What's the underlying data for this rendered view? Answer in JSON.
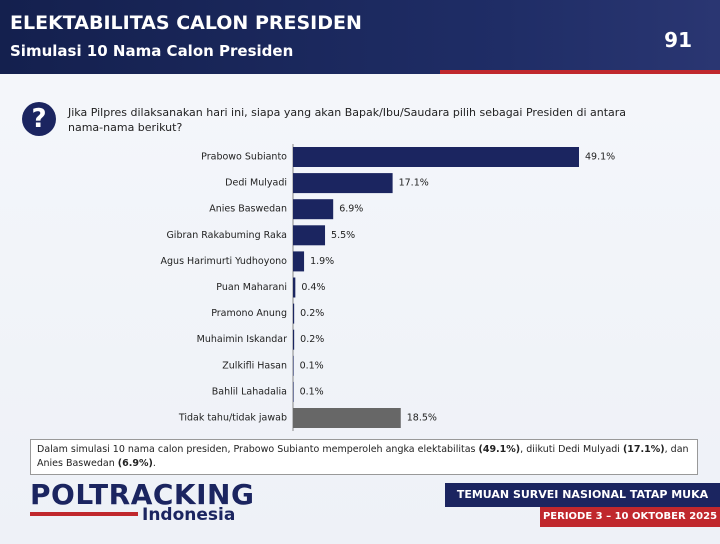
{
  "header": {
    "title": "ELEKTABILITAS CALON PRESIDEN",
    "subtitle": "Simulasi 10 Nama Calon Presiden",
    "page_number": "91"
  },
  "question": "Jika Pilpres dilaksanakan hari ini, siapa yang akan Bapak/Ibu/Saudara pilih sebagai Presiden di antara nama-nama berikut?",
  "chart_data": {
    "type": "bar",
    "orientation": "horizontal",
    "categories": [
      "Prabowo Subianto",
      "Dedi Mulyadi",
      "Anies Baswedan",
      "Gibran Rakabuming Raka",
      "Agus Harimurti Yudhoyono",
      "Puan Maharani",
      "Pramono Anung",
      "Muhaimin Iskandar",
      "Zulkifli Hasan",
      "Bahlil Lahadalia",
      "Tidak tahu/tidak jawab"
    ],
    "values": [
      49.1,
      17.1,
      6.9,
      5.5,
      1.9,
      0.4,
      0.2,
      0.2,
      0.1,
      0.1,
      18.5
    ],
    "value_labels": [
      "49.1%",
      "17.1%",
      "6.9%",
      "5.5%",
      "1.9%",
      "0.4%",
      "0.2%",
      "0.2%",
      "0.1%",
      "0.1%",
      "18.5%"
    ],
    "colors": [
      "#1b2560",
      "#1b2560",
      "#1b2560",
      "#1b2560",
      "#1b2560",
      "#1b2560",
      "#1b2560",
      "#1b2560",
      "#1b2560",
      "#1b2560",
      "#676767"
    ]
  },
  "note": [
    {
      "text": "Dalam simulasi 10 nama calon presiden, Prabowo Subianto memperoleh angka elektabilitas ",
      "bold": false
    },
    {
      "text": "(49.1%)",
      "bold": true
    },
    {
      "text": ", diikuti Dedi Mulyadi ",
      "bold": false
    },
    {
      "text": "(17.1%)",
      "bold": true
    },
    {
      "text": ", dan Anies Baswedan ",
      "bold": false
    },
    {
      "text": "(6.9%)",
      "bold": true
    },
    {
      "text": ".",
      "bold": false
    }
  ],
  "footer": {
    "logo": "POLTRACKING",
    "logo_sub": "Indonesia",
    "survey": "TEMUAN SURVEI NASIONAL TATAP MUKA",
    "period": "PERIODE 3 – 10 OKTOBER 2025"
  }
}
